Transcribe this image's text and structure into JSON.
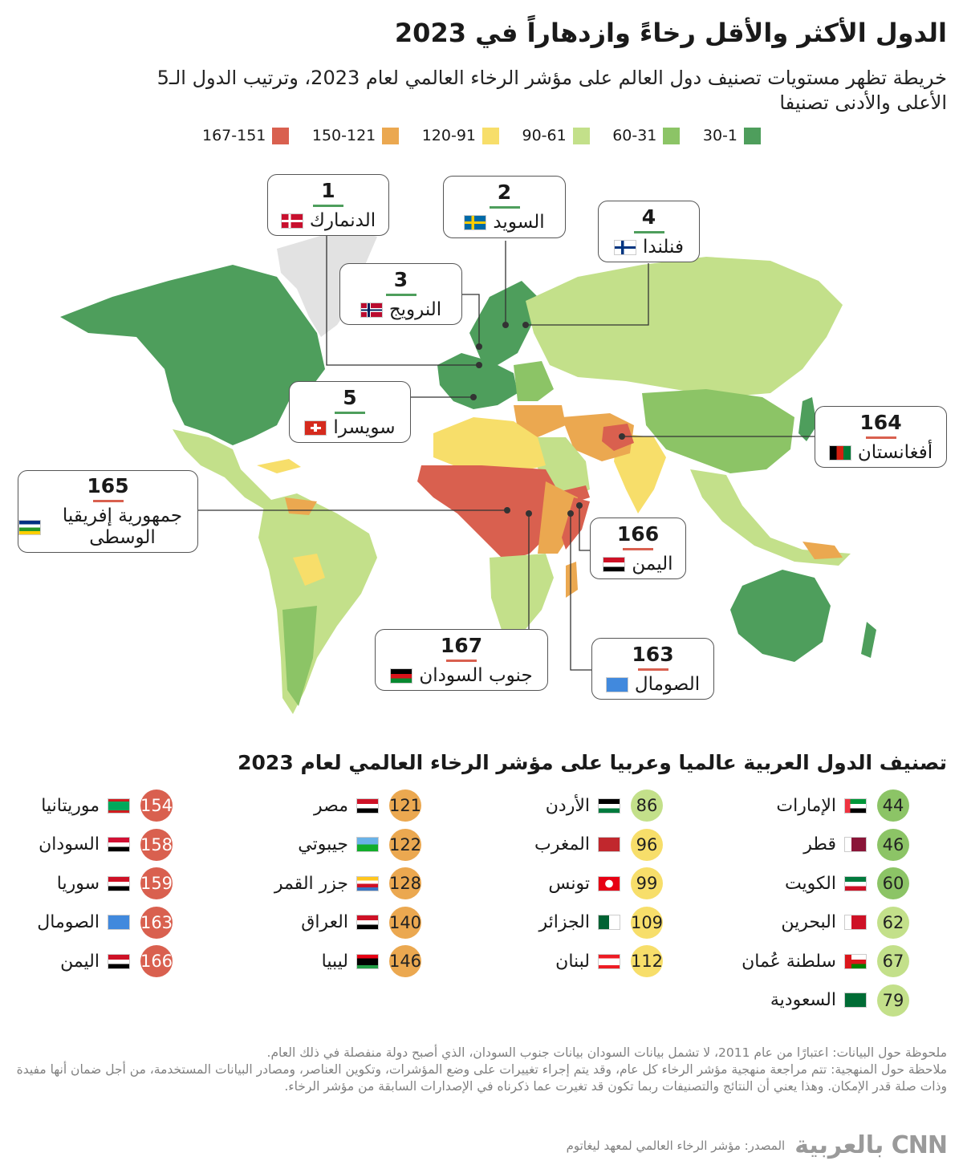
{
  "title": "الدول الأكثر والأقل رخاءً وازدهاراً في 2023",
  "subtitle": "خريطة تظهر مستويات تصنيف دول العالم على مؤشر الرخاء العالمي لعام 2023، وترتيب الدول الـ5 الأعلى والأدنى تصنيفا",
  "colors": {
    "tier1": "#4e9e5c",
    "tier2": "#8cc466",
    "tier3": "#c3e08a",
    "tier4": "#f7de6a",
    "tier5": "#eba850",
    "tier6": "#d9604f",
    "no_data": "#e2e2e2"
  },
  "legend": [
    {
      "label": "30-1",
      "color": "#4e9e5c"
    },
    {
      "label": "60-31",
      "color": "#8cc466"
    },
    {
      "label": "90-61",
      "color": "#c3e08a"
    },
    {
      "label": "120-91",
      "color": "#f7de6a"
    },
    {
      "label": "150-121",
      "color": "#eba850"
    },
    {
      "label": "167-151",
      "color": "#d9604f"
    }
  ],
  "callouts": [
    {
      "rank": "1",
      "name": "الدنمارك",
      "flag": "denmark-flag",
      "accent": "#4e9e5c"
    },
    {
      "rank": "2",
      "name": "السويد",
      "flag": "sweden-flag",
      "accent": "#4e9e5c"
    },
    {
      "rank": "3",
      "name": "النرويج",
      "flag": "norway-flag",
      "accent": "#4e9e5c"
    },
    {
      "rank": "4",
      "name": "فنلندا",
      "flag": "finland-flag",
      "accent": "#4e9e5c"
    },
    {
      "rank": "5",
      "name": "سويسرا",
      "flag": "switzerland-flag",
      "accent": "#4e9e5c"
    },
    {
      "rank": "164",
      "name": "أفغانستان",
      "flag": "afghanistan-flag",
      "accent": "#d9604f"
    },
    {
      "rank": "165",
      "name": "جمهورية إفريقيا الوسطى",
      "flag": "car-flag",
      "accent": "#d9604f"
    },
    {
      "rank": "166",
      "name": "اليمن",
      "flag": "yemen-flag",
      "accent": "#d9604f"
    },
    {
      "rank": "167",
      "name": "جنوب السودان",
      "flag": "south-sudan-flag",
      "accent": "#d9604f"
    },
    {
      "rank": "163",
      "name": "الصومال",
      "flag": "somalia-flag",
      "accent": "#d9604f"
    }
  ],
  "arab_section_title": "تصنيف الدول العربية عالميا وعربيا على مؤشر الرخاء العالمي لعام 2023",
  "arab_columns": [
    [
      {
        "rank": "44",
        "name": "الإمارات",
        "flag": "uae-flag",
        "color": "#8cc466"
      },
      {
        "rank": "46",
        "name": "قطر",
        "flag": "qatar-flag",
        "color": "#8cc466"
      },
      {
        "rank": "60",
        "name": "الكويت",
        "flag": "kuwait-flag",
        "color": "#8cc466"
      },
      {
        "rank": "62",
        "name": "البحرين",
        "flag": "bahrain-flag",
        "color": "#c3e08a"
      },
      {
        "rank": "67",
        "name": "سلطنة عُمان",
        "flag": "oman-flag",
        "color": "#c3e08a"
      },
      {
        "rank": "79",
        "name": "السعودية",
        "flag": "saudi-flag",
        "color": "#c3e08a"
      }
    ],
    [
      {
        "rank": "86",
        "name": "الأردن",
        "flag": "jordan-flag",
        "color": "#c3e08a"
      },
      {
        "rank": "96",
        "name": "المغرب",
        "flag": "morocco-flag",
        "color": "#f7de6a"
      },
      {
        "rank": "99",
        "name": "تونس",
        "flag": "tunisia-flag",
        "color": "#f7de6a"
      },
      {
        "rank": "109",
        "name": "الجزائر",
        "flag": "algeria-flag",
        "color": "#f7de6a"
      },
      {
        "rank": "112",
        "name": "لبنان",
        "flag": "lebanon-flag",
        "color": "#f7de6a"
      }
    ],
    [
      {
        "rank": "121",
        "name": "مصر",
        "flag": "egypt-flag",
        "color": "#eba850"
      },
      {
        "rank": "122",
        "name": "جيبوتي",
        "flag": "djibouti-flag",
        "color": "#eba850"
      },
      {
        "rank": "128",
        "name": "جزر القمر",
        "flag": "comoros-flag",
        "color": "#eba850"
      },
      {
        "rank": "140",
        "name": "العراق",
        "flag": "iraq-flag",
        "color": "#eba850"
      },
      {
        "rank": "146",
        "name": "ليبيا",
        "flag": "libya-flag",
        "color": "#eba850"
      }
    ],
    [
      {
        "rank": "154",
        "name": "موريتانيا",
        "flag": "mauritania-flag",
        "color": "#d9604f"
      },
      {
        "rank": "158",
        "name": "السودان",
        "flag": "sudan-flag",
        "color": "#d9604f"
      },
      {
        "rank": "159",
        "name": "سوريا",
        "flag": "syria-flag",
        "color": "#d9604f"
      },
      {
        "rank": "163",
        "name": "الصومال",
        "flag": "somalia-flag",
        "color": "#d9604f"
      },
      {
        "rank": "166",
        "name": "اليمن",
        "flag": "yemen-flag",
        "color": "#d9604f"
      }
    ]
  ],
  "notes": [
    "ملحوظة حول البيانات: اعتبارًا من عام 2011، لا تشمل بيانات السودان بيانات جنوب السودان، الذي أصبح دولة منفصلة في ذلك العام.",
    "ملاحظة حول المنهجية: تتم مراجعة منهجية مؤشر الرخاء كل عام، وقد يتم إجراء تغييرات على وضع المؤشرات، وتكوين العناصر، ومصادر البيانات المستخدمة، من أجل ضمان أنها مفيدة وذات صلة قدر الإمكان. وهذا يعني أن النتائج والتصنيفات ربما تكون قد تغيرت عما ذكرناه في الإصدارات السابقة من مؤشر الرخاء."
  ],
  "source": "المصدر: مؤشر الرخاء العالمي لمعهد ليغاتوم",
  "logo_text": "CNN بالعربية"
}
